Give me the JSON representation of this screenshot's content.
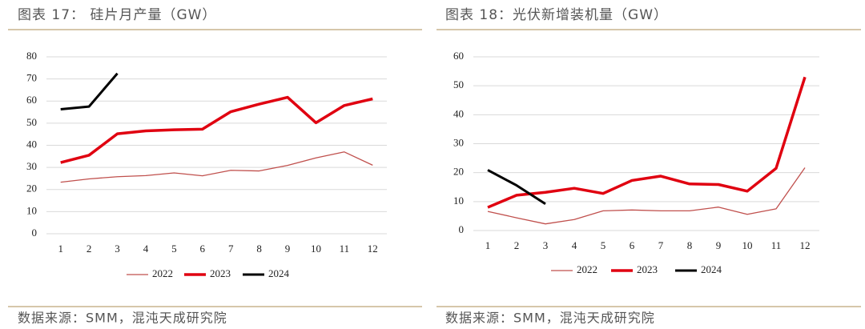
{
  "chart_data": [
    {
      "type": "line",
      "title": "图表 17：  硅片月产量（GW）",
      "source": "数据来源：SMM，混沌天成研究院",
      "categories": [
        "1",
        "2",
        "3",
        "4",
        "5",
        "6",
        "7",
        "8",
        "9",
        "10",
        "11",
        "12"
      ],
      "series": [
        {
          "name": "2022",
          "color": "#c0504d",
          "values": [
            23.3,
            24.8,
            25.8,
            26.3,
            27.5,
            26.2,
            28.7,
            28.4,
            30.9,
            34.3,
            37.0,
            31.0
          ]
        },
        {
          "name": "2023",
          "color": "#e00010",
          "values": [
            32.2,
            35.5,
            45.2,
            46.5,
            47.0,
            47.3,
            55.2,
            58.6,
            61.7,
            50.2,
            58.0,
            61.0
          ]
        },
        {
          "name": "2024",
          "color": "#000000",
          "values": [
            56.3,
            57.5,
            72.5,
            null,
            null,
            null,
            null,
            null,
            null,
            null,
            null,
            null
          ]
        }
      ],
      "ylim": [
        0,
        80
      ],
      "yticks": [
        0,
        10,
        20,
        30,
        40,
        50,
        60,
        70,
        80
      ],
      "grid": true,
      "legend": "bottom"
    },
    {
      "type": "line",
      "title": "图表 18：光伏新增装机量（GW）",
      "source": "数据来源：SMM，混沌天成研究院",
      "categories": [
        "1",
        "2",
        "3",
        "4",
        "5",
        "6",
        "7",
        "8",
        "9",
        "10",
        "11",
        "12"
      ],
      "series": [
        {
          "name": "2022",
          "color": "#c0504d",
          "values": [
            6.6,
            4.4,
            2.3,
            3.8,
            6.8,
            7.1,
            6.8,
            6.8,
            8.1,
            5.6,
            7.5,
            21.7
          ]
        },
        {
          "name": "2023",
          "color": "#e00010",
          "values": [
            8.0,
            12.2,
            13.2,
            14.6,
            12.8,
            17.3,
            18.8,
            16.1,
            15.9,
            13.6,
            21.5,
            53.0
          ]
        },
        {
          "name": "2024",
          "color": "#000000",
          "values": [
            20.9,
            15.6,
            9.2,
            null,
            null,
            null,
            null,
            null,
            null,
            null,
            null,
            null
          ]
        }
      ],
      "ylim": [
        0,
        60
      ],
      "yticks": [
        0,
        10,
        20,
        30,
        40,
        50,
        60
      ],
      "grid": true,
      "legend": "bottom"
    }
  ]
}
